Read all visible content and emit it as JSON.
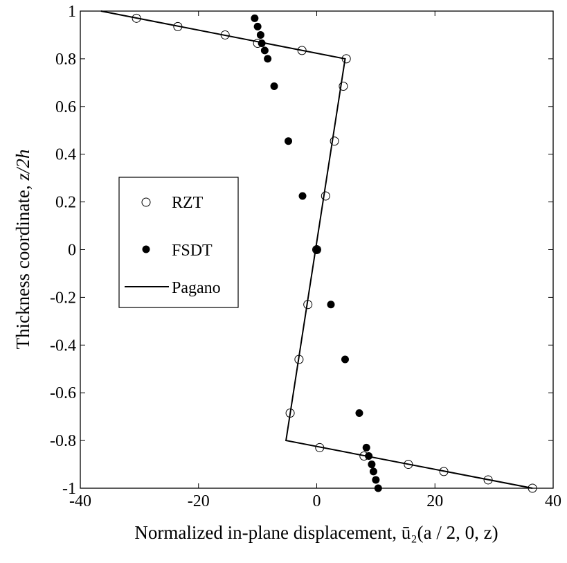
{
  "chart_data": {
    "type": "scatter",
    "title": "",
    "xlabel": "Normalized in-plane displacement, ū₂(a / 2, 0, z)",
    "ylabel_prefix": "Thickness coordinate, ",
    "ylabel_var": "z/2h",
    "xlim": [
      -40,
      40
    ],
    "ylim": [
      -1,
      1
    ],
    "xticks": [
      -40,
      -20,
      0,
      20,
      40
    ],
    "xtick_labels": [
      "-40",
      "-20",
      "0",
      "20",
      "40"
    ],
    "yticks": [
      -1,
      -0.8,
      -0.6,
      -0.4,
      -0.2,
      0,
      0.2,
      0.4,
      0.6,
      0.8,
      1
    ],
    "ytick_labels": [
      "-1",
      "-0.8",
      "-0.6",
      "-0.4",
      "-0.2",
      "0",
      "0.2",
      "0.4",
      "0.6",
      "0.8",
      "1"
    ],
    "grid": false,
    "legend_position": "middle-left",
    "series": [
      {
        "name": "RZT",
        "marker": "open-circle",
        "x": [
          -30.5,
          -23.5,
          -15.5,
          -10,
          -2.5,
          5,
          4.5,
          3,
          1.5,
          0,
          -1.5,
          -3,
          -4.5,
          0.5,
          8,
          15.5,
          21.5,
          29,
          36.5
        ],
        "y": [
          0.97,
          0.935,
          0.9,
          0.865,
          0.835,
          0.8,
          0.685,
          0.455,
          0.225,
          0,
          -0.23,
          -0.46,
          -0.685,
          -0.83,
          -0.865,
          -0.9,
          -0.93,
          -0.965,
          -1
        ]
      },
      {
        "name": "FSDT",
        "marker": "filled-circle",
        "x": [
          -10.5,
          -10,
          -9.5,
          -9.3,
          -8.8,
          -8.3,
          -7.2,
          -4.8,
          -2.4,
          0,
          2.4,
          4.8,
          7.2,
          8.4,
          8.8,
          9.3,
          9.6,
          10,
          10.4
        ],
        "y": [
          0.97,
          0.935,
          0.9,
          0.865,
          0.835,
          0.8,
          0.685,
          0.455,
          0.225,
          0,
          -0.23,
          -0.46,
          -0.685,
          -0.83,
          -0.865,
          -0.9,
          -0.93,
          -0.965,
          -1
        ]
      },
      {
        "name": "Pagano",
        "marker": "line",
        "x": [
          -36.5,
          4.8,
          -5.2,
          36.5
        ],
        "y": [
          1,
          0.8,
          -0.8,
          -1
        ]
      }
    ]
  }
}
